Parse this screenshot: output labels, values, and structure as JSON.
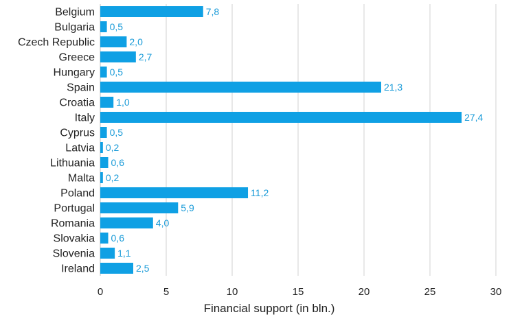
{
  "colors": {
    "bar": "#0fa0e4",
    "value_label": "#1a9bd8"
  },
  "chart_data": {
    "type": "bar",
    "orientation": "horizontal",
    "categories": [
      "Belgium",
      "Bulgaria",
      "Czech Republic",
      "Greece",
      "Hungary",
      "Spain",
      "Croatia",
      "Italy",
      "Cyprus",
      "Latvia",
      "Lithuania",
      "Malta",
      "Poland",
      "Portugal",
      "Romania",
      "Slovakia",
      "Slovenia",
      "Ireland"
    ],
    "values": [
      7.8,
      0.5,
      2.0,
      2.7,
      0.5,
      21.3,
      1.0,
      27.4,
      0.5,
      0.2,
      0.6,
      0.2,
      11.2,
      5.9,
      4.0,
      0.6,
      1.1,
      2.5
    ],
    "value_labels": [
      "7,8",
      "0,5",
      "2,0",
      "2,7",
      "0,5",
      "21,3",
      "1,0",
      "27,4",
      "0,5",
      "0,2",
      "0,6",
      "0,2",
      "11,2",
      "5,9",
      "4,0",
      "0,6",
      "1,1",
      "2,5"
    ],
    "xlabel": "Financial support (in bln.)",
    "ylabel": "",
    "xlim": [
      0,
      30
    ],
    "xticks": [
      0,
      5,
      10,
      15,
      20,
      25,
      30
    ],
    "xtick_labels": [
      "0",
      "5",
      "10",
      "15",
      "20",
      "25",
      "30"
    ],
    "grid": true
  }
}
